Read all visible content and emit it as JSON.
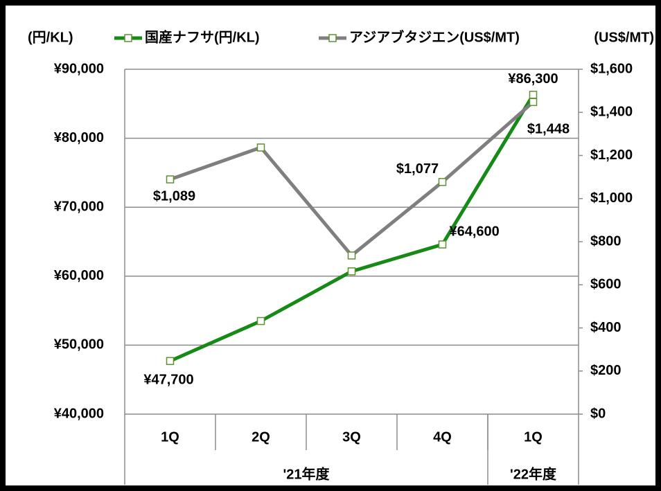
{
  "chart_data": {
    "type": "line",
    "categories": [
      "1Q",
      "2Q",
      "3Q",
      "4Q",
      "1Q"
    ],
    "groups": [
      {
        "label": "'21年度",
        "span": 4
      },
      {
        "label": "'22年度",
        "span": 1
      }
    ],
    "y_unit_label": "(円/KL)",
    "y2_unit_label": "(US$/MT)",
    "ylim": [
      40000,
      90000
    ],
    "yticks": [
      {
        "value": 40000,
        "label": "¥40,000"
      },
      {
        "value": 50000,
        "label": "¥50,000"
      },
      {
        "value": 60000,
        "label": "¥60,000"
      },
      {
        "value": 70000,
        "label": "¥70,000"
      },
      {
        "value": 80000,
        "label": "¥80,000"
      },
      {
        "value": 90000,
        "label": "¥90,000"
      }
    ],
    "y2lim": [
      0,
      1600
    ],
    "y2ticks": [
      {
        "value": 0,
        "label": "$0"
      },
      {
        "value": 200,
        "label": "$200"
      },
      {
        "value": 400,
        "label": "$400"
      },
      {
        "value": 600,
        "label": "$600"
      },
      {
        "value": 800,
        "label": "$800"
      },
      {
        "value": 1000,
        "label": "$1,000"
      },
      {
        "value": 1200,
        "label": "$1,200"
      },
      {
        "value": 1400,
        "label": "$1,400"
      },
      {
        "value": 1600,
        "label": "$1,600"
      }
    ],
    "grid": true,
    "series": [
      {
        "name": "国産ナフサ(円/KL)",
        "color": "#168a16",
        "marker_color": "#5f8f2f",
        "values": [
          47700,
          53500,
          60700,
          64600,
          86300
        ],
        "value_labels": [
          "¥47,700",
          null,
          null,
          "¥64,600",
          "¥86,300"
        ]
      },
      {
        "name": "アジアブタジエン(US$/MT)",
        "color": "#7f7f7f",
        "marker_color": "#5f8f2f",
        "axis": "y2",
        "values": [
          1089,
          1237,
          736,
          1077,
          1448
        ],
        "value_labels": [
          "$1,089",
          null,
          null,
          "$1,077",
          "$1,448"
        ]
      }
    ]
  }
}
